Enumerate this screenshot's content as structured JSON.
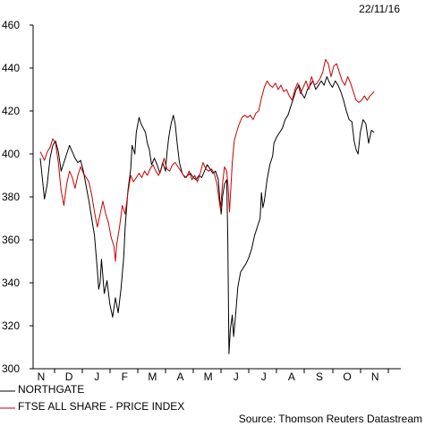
{
  "chart_data": {
    "type": "line",
    "date_label": "22/11/16",
    "source": "Source: Thomson Reuters Datastream",
    "ylim": [
      300,
      460
    ],
    "yticks": [
      300,
      320,
      340,
      360,
      380,
      400,
      420,
      440,
      460
    ],
    "x_months": [
      "N",
      "D",
      "J",
      "F",
      "M",
      "A",
      "M",
      "J",
      "J",
      "A",
      "S",
      "O",
      "N"
    ],
    "xlim": [
      0,
      12.55
    ],
    "grid": false,
    "legend_position": "bottom-left",
    "series": [
      {
        "name": "NORTHGATE",
        "color": "#000000",
        "points": [
          [
            0.0,
            398
          ],
          [
            0.08,
            388
          ],
          [
            0.15,
            379
          ],
          [
            0.25,
            386
          ],
          [
            0.35,
            398
          ],
          [
            0.45,
            404
          ],
          [
            0.55,
            406
          ],
          [
            0.65,
            401
          ],
          [
            0.75,
            392
          ],
          [
            0.85,
            396
          ],
          [
            0.95,
            400
          ],
          [
            1.05,
            404
          ],
          [
            1.15,
            401
          ],
          [
            1.25,
            398
          ],
          [
            1.35,
            396
          ],
          [
            1.45,
            397
          ],
          [
            1.55,
            392
          ],
          [
            1.65,
            385
          ],
          [
            1.75,
            378
          ],
          [
            1.85,
            370
          ],
          [
            1.95,
            362
          ],
          [
            2.0,
            354
          ],
          [
            2.05,
            346
          ],
          [
            2.1,
            337
          ],
          [
            2.15,
            340
          ],
          [
            2.2,
            351
          ],
          [
            2.25,
            343
          ],
          [
            2.3,
            335
          ],
          [
            2.4,
            341
          ],
          [
            2.5,
            330
          ],
          [
            2.6,
            324
          ],
          [
            2.7,
            333
          ],
          [
            2.8,
            326
          ],
          [
            2.9,
            337
          ],
          [
            3.0,
            352
          ],
          [
            3.05,
            366
          ],
          [
            3.15,
            383
          ],
          [
            3.25,
            393
          ],
          [
            3.3,
            404
          ],
          [
            3.4,
            400
          ],
          [
            3.45,
            410
          ],
          [
            3.55,
            417
          ],
          [
            3.62,
            414
          ],
          [
            3.7,
            412
          ],
          [
            3.78,
            410
          ],
          [
            3.85,
            405
          ],
          [
            3.92,
            402
          ],
          [
            4.0,
            395
          ],
          [
            4.1,
            398
          ],
          [
            4.2,
            395
          ],
          [
            4.3,
            391
          ],
          [
            4.4,
            396
          ],
          [
            4.5,
            392
          ],
          [
            4.55,
            400
          ],
          [
            4.62,
            408
          ],
          [
            4.7,
            414
          ],
          [
            4.78,
            418
          ],
          [
            4.85,
            414
          ],
          [
            4.92,
            405
          ],
          [
            5.0,
            396
          ],
          [
            5.1,
            391
          ],
          [
            5.2,
            389
          ],
          [
            5.3,
            390
          ],
          [
            5.4,
            391
          ],
          [
            5.5,
            389
          ],
          [
            5.6,
            388
          ],
          [
            5.7,
            390
          ],
          [
            5.8,
            389
          ],
          [
            5.9,
            392
          ],
          [
            6.0,
            395
          ],
          [
            6.1,
            393
          ],
          [
            6.2,
            391
          ],
          [
            6.3,
            392
          ],
          [
            6.4,
            388
          ],
          [
            6.45,
            379
          ],
          [
            6.5,
            372
          ],
          [
            6.55,
            380
          ],
          [
            6.62,
            386
          ],
          [
            6.7,
            388
          ],
          [
            6.74,
            360
          ],
          [
            6.78,
            307
          ],
          [
            6.83,
            318
          ],
          [
            6.9,
            325
          ],
          [
            6.95,
            315
          ],
          [
            7.0,
            322
          ],
          [
            7.05,
            330
          ],
          [
            7.1,
            338
          ],
          [
            7.2,
            345
          ],
          [
            7.3,
            347
          ],
          [
            7.4,
            349
          ],
          [
            7.5,
            352
          ],
          [
            7.6,
            356
          ],
          [
            7.7,
            362
          ],
          [
            7.8,
            366
          ],
          [
            7.9,
            370
          ],
          [
            7.95,
            382
          ],
          [
            8.0,
            375
          ],
          [
            8.05,
            378
          ],
          [
            8.15,
            388
          ],
          [
            8.25,
            395
          ],
          [
            8.35,
            399
          ],
          [
            8.4,
            405
          ],
          [
            8.5,
            408
          ],
          [
            8.6,
            410
          ],
          [
            8.7,
            412
          ],
          [
            8.8,
            416
          ],
          [
            8.9,
            418
          ],
          [
            9.0,
            422
          ],
          [
            9.1,
            426
          ],
          [
            9.2,
            430
          ],
          [
            9.3,
            432
          ],
          [
            9.4,
            428
          ],
          [
            9.5,
            426
          ],
          [
            9.6,
            430
          ],
          [
            9.7,
            432
          ],
          [
            9.8,
            434
          ],
          [
            9.9,
            430
          ],
          [
            10.0,
            432
          ],
          [
            10.1,
            434
          ],
          [
            10.2,
            432
          ],
          [
            10.3,
            436
          ],
          [
            10.4,
            433
          ],
          [
            10.5,
            431
          ],
          [
            10.6,
            434
          ],
          [
            10.7,
            432
          ],
          [
            10.8,
            429
          ],
          [
            10.9,
            425
          ],
          [
            11.0,
            420
          ],
          [
            11.1,
            416
          ],
          [
            11.2,
            415
          ],
          [
            11.28,
            406
          ],
          [
            11.35,
            402
          ],
          [
            11.42,
            400
          ],
          [
            11.5,
            410
          ],
          [
            11.6,
            416
          ],
          [
            11.7,
            414
          ],
          [
            11.8,
            405
          ],
          [
            11.9,
            411
          ],
          [
            12.0,
            410
          ]
        ]
      },
      {
        "name": "FTSE ALL SHARE - PRICE INDEX",
        "color": "#cc0000",
        "points": [
          [
            0.0,
            401
          ],
          [
            0.08,
            399
          ],
          [
            0.15,
            397
          ],
          [
            0.25,
            401
          ],
          [
            0.35,
            403
          ],
          [
            0.45,
            407
          ],
          [
            0.55,
            405
          ],
          [
            0.65,
            396
          ],
          [
            0.75,
            383
          ],
          [
            0.85,
            376
          ],
          [
            0.95,
            386
          ],
          [
            1.05,
            392
          ],
          [
            1.15,
            389
          ],
          [
            1.25,
            384
          ],
          [
            1.35,
            390
          ],
          [
            1.45,
            394
          ],
          [
            1.55,
            391
          ],
          [
            1.65,
            389
          ],
          [
            1.75,
            387
          ],
          [
            1.85,
            381
          ],
          [
            1.95,
            373
          ],
          [
            2.05,
            366
          ],
          [
            2.15,
            372
          ],
          [
            2.25,
            378
          ],
          [
            2.35,
            372
          ],
          [
            2.45,
            368
          ],
          [
            2.55,
            361
          ],
          [
            2.65,
            357
          ],
          [
            2.7,
            350
          ],
          [
            2.75,
            358
          ],
          [
            2.85,
            366
          ],
          [
            2.95,
            376
          ],
          [
            3.05,
            372
          ],
          [
            3.15,
            382
          ],
          [
            3.25,
            390
          ],
          [
            3.35,
            387
          ],
          [
            3.45,
            389
          ],
          [
            3.55,
            391
          ],
          [
            3.65,
            389
          ],
          [
            3.75,
            392
          ],
          [
            3.85,
            390
          ],
          [
            3.95,
            393
          ],
          [
            4.05,
            395
          ],
          [
            4.15,
            392
          ],
          [
            4.25,
            390
          ],
          [
            4.35,
            393
          ],
          [
            4.45,
            398
          ],
          [
            4.55,
            393
          ],
          [
            4.65,
            392
          ],
          [
            4.75,
            395
          ],
          [
            4.85,
            396
          ],
          [
            4.95,
            394
          ],
          [
            5.05,
            392
          ],
          [
            5.15,
            390
          ],
          [
            5.25,
            389
          ],
          [
            5.35,
            392
          ],
          [
            5.45,
            388
          ],
          [
            5.55,
            390
          ],
          [
            5.65,
            387
          ],
          [
            5.75,
            391
          ],
          [
            5.85,
            396
          ],
          [
            5.95,
            393
          ],
          [
            6.05,
            392
          ],
          [
            6.15,
            393
          ],
          [
            6.25,
            391
          ],
          [
            6.35,
            386
          ],
          [
            6.42,
            379
          ],
          [
            6.48,
            374
          ],
          [
            6.55,
            386
          ],
          [
            6.62,
            394
          ],
          [
            6.7,
            392
          ],
          [
            6.75,
            385
          ],
          [
            6.8,
            373
          ],
          [
            6.85,
            384
          ],
          [
            6.9,
            396
          ],
          [
            6.97,
            406
          ],
          [
            7.05,
            410
          ],
          [
            7.15,
            414
          ],
          [
            7.25,
            417
          ],
          [
            7.35,
            418
          ],
          [
            7.45,
            417
          ],
          [
            7.55,
            418
          ],
          [
            7.65,
            416
          ],
          [
            7.75,
            419
          ],
          [
            7.85,
            420
          ],
          [
            7.95,
            426
          ],
          [
            8.05,
            431
          ],
          [
            8.15,
            434
          ],
          [
            8.25,
            432
          ],
          [
            8.35,
            431
          ],
          [
            8.45,
            433
          ],
          [
            8.55,
            430
          ],
          [
            8.65,
            432
          ],
          [
            8.75,
            429
          ],
          [
            8.85,
            430
          ],
          [
            8.95,
            427
          ],
          [
            9.05,
            425
          ],
          [
            9.15,
            430
          ],
          [
            9.25,
            433
          ],
          [
            9.35,
            428
          ],
          [
            9.45,
            431
          ],
          [
            9.55,
            434
          ],
          [
            9.65,
            430
          ],
          [
            9.75,
            436
          ],
          [
            9.85,
            432
          ],
          [
            9.95,
            433
          ],
          [
            10.05,
            435
          ],
          [
            10.15,
            438
          ],
          [
            10.25,
            444
          ],
          [
            10.35,
            442
          ],
          [
            10.45,
            436
          ],
          [
            10.55,
            441
          ],
          [
            10.65,
            442
          ],
          [
            10.75,
            438
          ],
          [
            10.85,
            434
          ],
          [
            10.95,
            432
          ],
          [
            11.05,
            436
          ],
          [
            11.15,
            433
          ],
          [
            11.25,
            429
          ],
          [
            11.35,
            425
          ],
          [
            11.45,
            424
          ],
          [
            11.55,
            425
          ],
          [
            11.65,
            427
          ],
          [
            11.75,
            425
          ],
          [
            11.85,
            427
          ],
          [
            12.0,
            429
          ]
        ]
      }
    ]
  }
}
